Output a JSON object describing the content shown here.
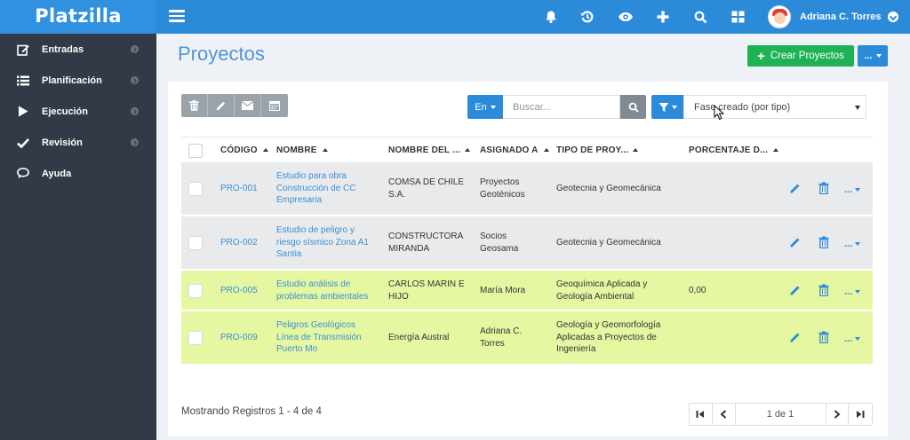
{
  "app": {
    "brand": "Platzilla"
  },
  "header": {
    "icons": [
      "bell-icon",
      "history-icon",
      "eye-icon",
      "plus-icon",
      "search-icon",
      "grid-icon"
    ],
    "user_name": "Adriana C. Torres"
  },
  "sidebar": {
    "items": [
      {
        "label": "Entradas",
        "icon": "edit-icon"
      },
      {
        "label": "Planificación",
        "icon": "list-icon"
      },
      {
        "label": "Ejecución",
        "icon": "play-icon"
      },
      {
        "label": "Revisión",
        "icon": "check-icon"
      },
      {
        "label": "Ayuda",
        "icon": "chat-icon"
      }
    ]
  },
  "page": {
    "title": "Proyectos",
    "create_label": "Crear Proyectos",
    "more_label": "..."
  },
  "toolbar": {
    "search_scope": "En",
    "search_placeholder": "Buscar...",
    "filter_value": "Fase creado (por tipo)"
  },
  "table": {
    "headers": {
      "codigo": "CÓDIGO",
      "nombre": "NOMBRE",
      "cliente": "NOMBRE DEL ...",
      "asignado": "ASIGNADO A",
      "tipo": "TIPO DE PROY...",
      "porcentaje": "PORCENTAJE D..."
    },
    "rows": [
      {
        "codigo": "PRO-001",
        "nombre": [
          "Estudio para obra",
          "Construcción de CC",
          "Empresaria"
        ],
        "cliente": [
          "COMSA DE CHILE",
          "S.A."
        ],
        "asignado": [
          "Proyectos",
          "Geoténicos"
        ],
        "tipo": [
          "Geotecnia y Geomecánica"
        ],
        "porcentaje": "",
        "highlight": "gray"
      },
      {
        "codigo": "PRO-002",
        "nombre": [
          "Estudio de peligro y",
          "riesgo sísmico Zona A1",
          "Santia"
        ],
        "cliente": [
          "CONSTRUCTORA",
          "MIRANDA"
        ],
        "asignado": [
          "Socios",
          "Geosama"
        ],
        "tipo": [
          "Geotecnia y Geomecánica"
        ],
        "porcentaje": "",
        "highlight": "gray"
      },
      {
        "codigo": "PRO-005",
        "nombre": [
          "Estudio análisis de",
          "problemas ambientales"
        ],
        "cliente": [
          "CARLOS MARIN E",
          "HIJO"
        ],
        "asignado": [
          "María Mora"
        ],
        "tipo": [
          "Geoquímica Aplicada y",
          "Geología Ambiental"
        ],
        "porcentaje": "0,00",
        "highlight": "green"
      },
      {
        "codigo": "PRO-009",
        "nombre": [
          "Peligros Geológicos",
          "Línea de Transmisión",
          "Puerto Mo"
        ],
        "cliente": [
          "Energía Austral"
        ],
        "asignado": [
          "Adriana C.",
          "Torres"
        ],
        "tipo": [
          "Geología y Geomorfología",
          "Aplicadas a Proyectos de",
          "Ingeniería"
        ],
        "porcentaje": "",
        "highlight": "green"
      }
    ],
    "row_action_more": "..."
  },
  "footer": {
    "records": "Mostrando Registros 1 - 4 de 4",
    "page_input": "1 de 1"
  },
  "colors": {
    "accent": "#2b8bd9",
    "create": "#1fb255",
    "sidebar": "#323a47",
    "row_gray": "#e9eaec",
    "row_green": "#e6f7a2"
  }
}
